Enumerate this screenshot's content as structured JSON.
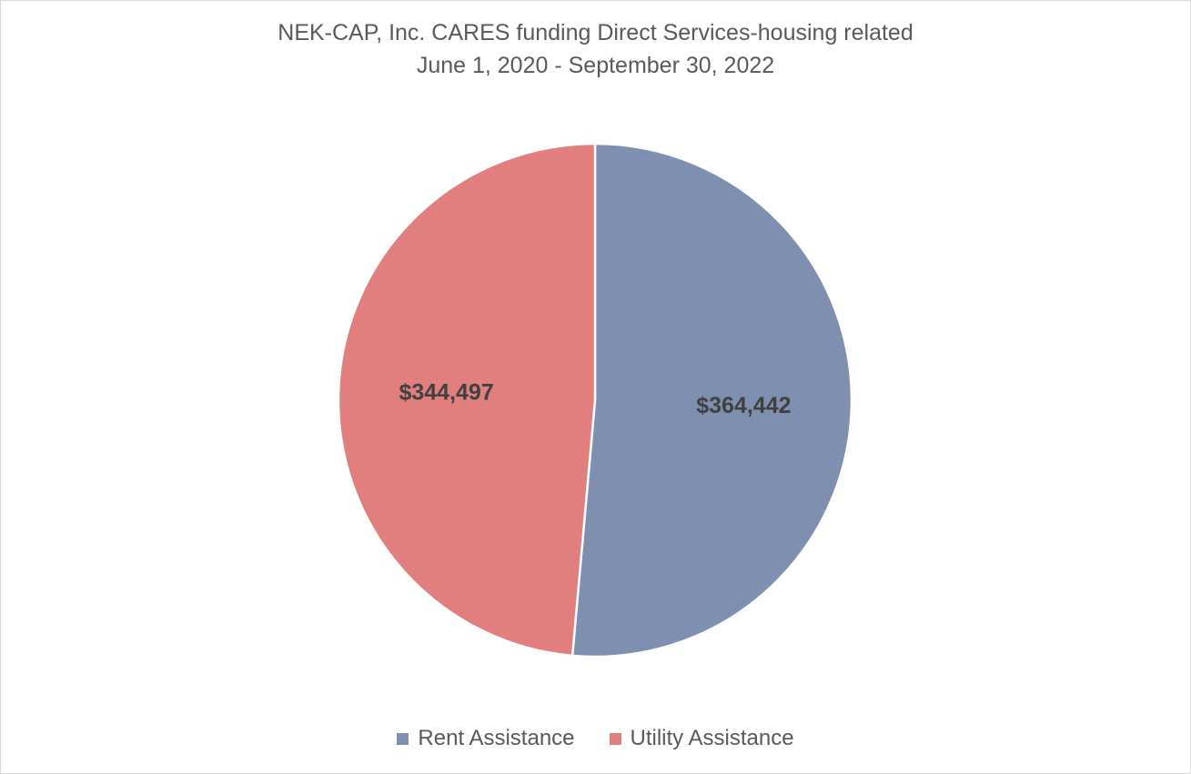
{
  "chart_data": {
    "type": "pie",
    "title": "NEK-CAP, Inc. CARES funding Direct Services-housing related",
    "subtitle": "June 1, 2020 - September 30, 2022",
    "categories": [
      "Rent Assistance",
      "Utility Assistance"
    ],
    "values": [
      364442,
      344497
    ],
    "data_labels": [
      "$364,442",
      "$344,497"
    ],
    "colors": [
      "#7f8fb0",
      "#e07f7e"
    ],
    "label_color": "#404040",
    "legend_position": "bottom",
    "start_angle": "top, clockwise"
  }
}
